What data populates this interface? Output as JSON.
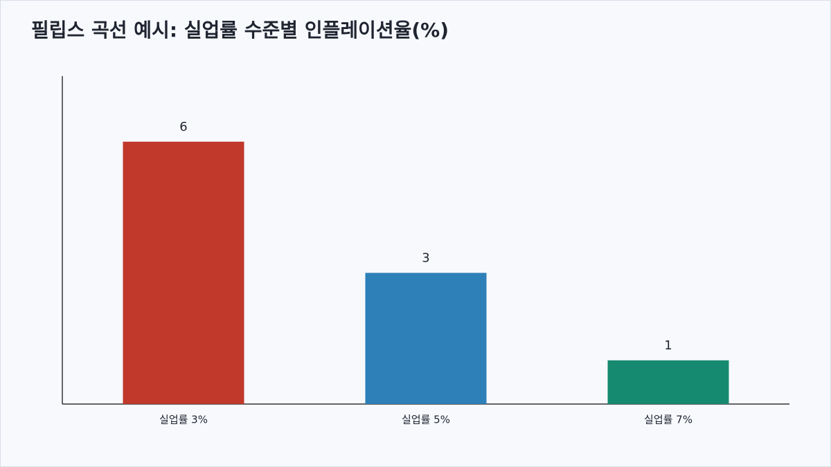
{
  "chart_data": {
    "type": "bar",
    "title": "필립스 곡선 예시: 실업률 수준별 인플레이션율(%)",
    "categories": [
      "실업률 3%",
      "실업률 5%",
      "실업률 7%"
    ],
    "values": [
      6,
      3,
      1
    ],
    "colors": [
      "#c0392b",
      "#2e80b8",
      "#168a70"
    ],
    "ylim": [
      0,
      7.5
    ]
  }
}
